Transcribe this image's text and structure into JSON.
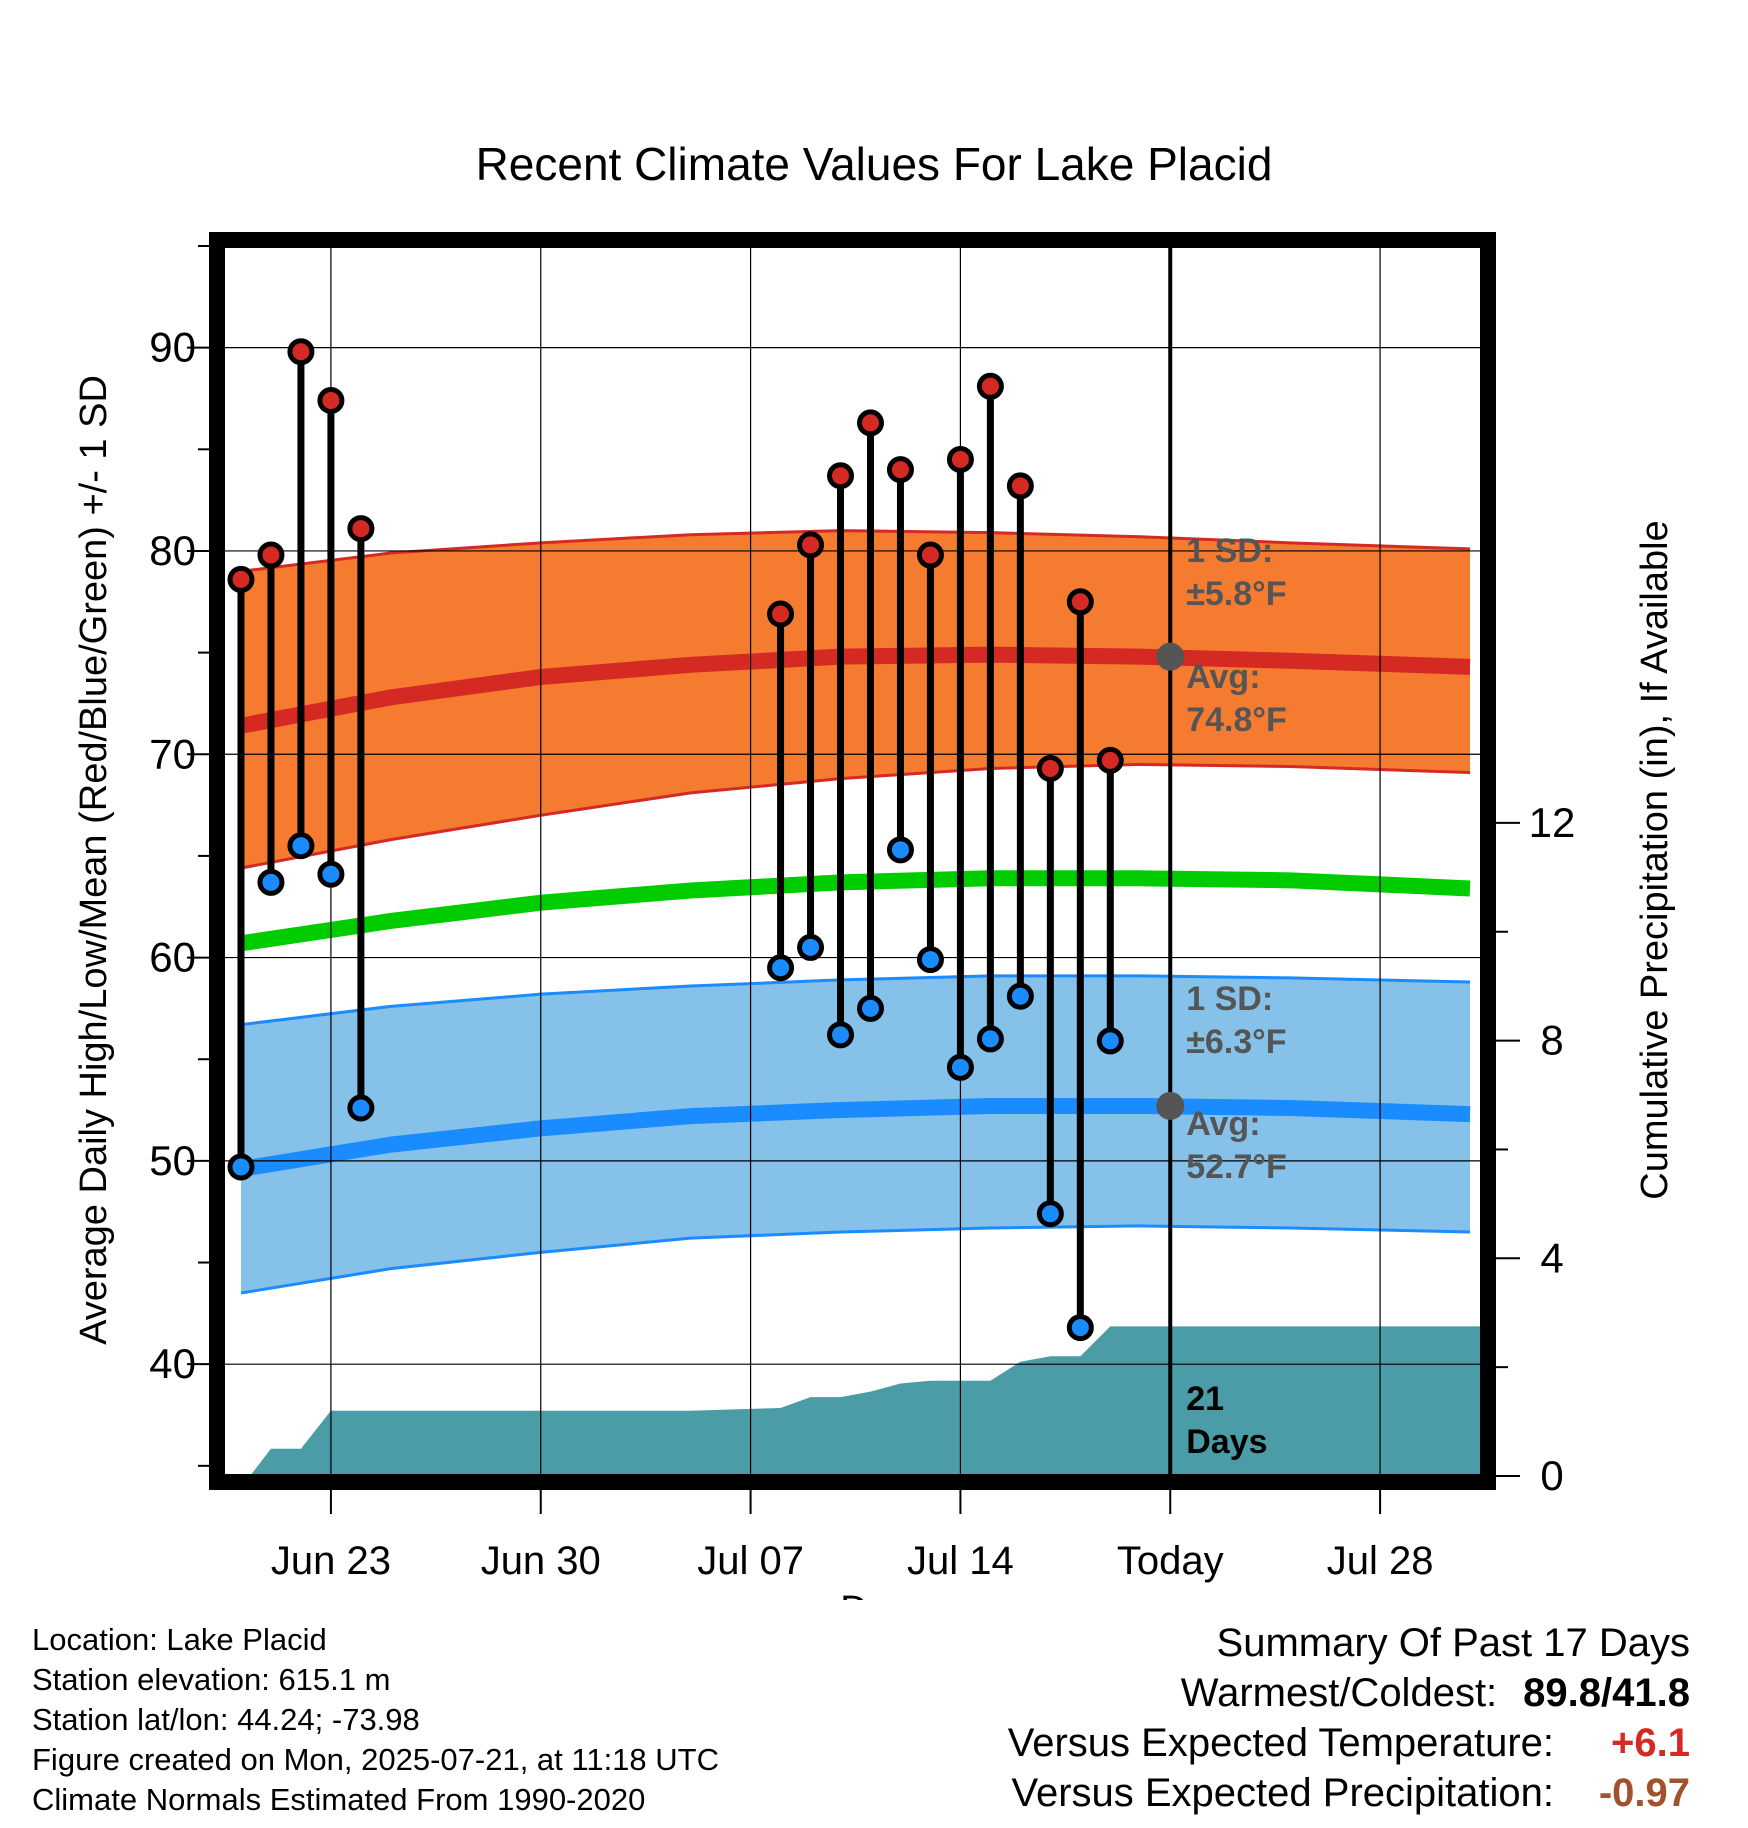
{
  "chart_data": {
    "type": "line",
    "title": "Recent Climate Values For Lake Placid",
    "xlabel": "Day",
    "ylabel": "Average Daily High/Low/Mean (Red/Blue/Green) +/- 1 SD",
    "ylabel_right": "Cumulative Precipitation (in), If Available",
    "x_ticks": [
      {
        "day": 3,
        "label": "Jun 23"
      },
      {
        "day": 10,
        "label": "Jun 30"
      },
      {
        "day": 17,
        "label": "Jul 07"
      },
      {
        "day": 24,
        "label": "Jul 14"
      },
      {
        "day": 31,
        "label": "Today"
      },
      {
        "day": 38,
        "label": "Jul 28"
      }
    ],
    "xlim": [
      -0.6,
      41.4
    ],
    "ylim": [
      34.5,
      95
    ],
    "y_ticks": [
      40,
      50,
      60,
      70,
      80,
      90
    ],
    "y2lim": [
      0,
      22.6
    ],
    "y2_ticks": [
      0,
      4,
      8,
      12
    ],
    "grid": true,
    "normals": {
      "day": [
        0,
        5,
        10,
        15,
        20,
        25,
        30,
        35,
        41
      ],
      "high_upper": [
        79.0,
        79.9,
        80.4,
        80.8,
        81.0,
        80.9,
        80.7,
        80.4,
        80.1
      ],
      "high_mean": [
        71.4,
        72.8,
        73.8,
        74.4,
        74.8,
        74.9,
        74.8,
        74.6,
        74.3
      ],
      "high_lower": [
        64.4,
        65.8,
        67.0,
        68.1,
        68.8,
        69.3,
        69.5,
        69.4,
        69.1
      ],
      "mean": [
        60.7,
        61.8,
        62.7,
        63.3,
        63.7,
        63.9,
        63.9,
        63.8,
        63.4
      ],
      "low_upper": [
        56.7,
        57.6,
        58.2,
        58.6,
        58.9,
        59.1,
        59.1,
        59.0,
        58.8
      ],
      "low_mean": [
        49.6,
        50.8,
        51.6,
        52.2,
        52.5,
        52.7,
        52.7,
        52.6,
        52.3
      ],
      "low_lower": [
        43.5,
        44.7,
        45.5,
        46.2,
        46.5,
        46.7,
        46.8,
        46.7,
        46.5
      ]
    },
    "observed": [
      {
        "day": 0,
        "high": 78.6,
        "low": 49.7
      },
      {
        "day": 1,
        "high": 79.8,
        "low": 63.7
      },
      {
        "day": 2,
        "high": 89.8,
        "low": 65.5
      },
      {
        "day": 3,
        "high": 87.4,
        "low": 64.1
      },
      {
        "day": 4,
        "high": 81.1,
        "low": 52.6
      },
      {
        "day": 18,
        "high": 76.9,
        "low": 59.5
      },
      {
        "day": 19,
        "high": 80.3,
        "low": 60.5
      },
      {
        "day": 20,
        "high": 83.7,
        "low": 56.2
      },
      {
        "day": 21,
        "high": 86.3,
        "low": 57.5
      },
      {
        "day": 22,
        "high": 84.0,
        "low": 65.3
      },
      {
        "day": 23,
        "high": 79.8,
        "low": 59.9
      },
      {
        "day": 24,
        "high": 84.5,
        "low": 54.6
      },
      {
        "day": 25,
        "high": 88.1,
        "low": 56.0
      },
      {
        "day": 26,
        "high": 83.2,
        "low": 58.1
      },
      {
        "day": 27,
        "high": 69.3,
        "low": 47.4
      },
      {
        "day": 28,
        "high": 77.5,
        "low": 41.8
      },
      {
        "day": 29,
        "high": 69.7,
        "low": 55.9
      }
    ],
    "precip_cumulative": {
      "day": [
        0.3,
        1,
        2,
        3,
        4,
        5,
        10,
        15,
        18,
        19,
        20,
        21,
        22,
        23,
        24,
        25,
        26,
        27,
        28,
        29,
        41.4
      ],
      "value": [
        0.0,
        0.5,
        0.5,
        1.2,
        1.2,
        1.2,
        1.2,
        1.2,
        1.25,
        1.45,
        1.45,
        1.55,
        1.7,
        1.75,
        1.75,
        1.75,
        2.1,
        2.2,
        2.2,
        2.75,
        2.75
      ]
    },
    "today_day": 31,
    "today_high_avg": 74.8,
    "today_low_avg": 52.7,
    "annotations": {
      "high_sd_l1": "1 SD:",
      "high_sd_l2": "±5.8°F",
      "high_avg_l1": "Avg:",
      "high_avg_l2": "74.8°F",
      "low_sd_l1": "1 SD:",
      "low_sd_l2": "±6.3°F",
      "low_avg_l1": "Avg:",
      "low_avg_l2": "52.7°F",
      "days_l1": "21",
      "days_l2": "Days"
    },
    "colors": {
      "high_band": "#f47b30",
      "high_line": "#d42a23",
      "low_band": "#85c1e8",
      "low_line": "#1a8cff",
      "mean_line": "#00cc00",
      "precip_fill": "#4a9ca6",
      "high_dot": "#d42a23",
      "low_dot": "#1a8cff",
      "annotation_text": "#555555"
    }
  },
  "info": {
    "location": "Location: Lake Placid",
    "elevation": "Station elevation: 615.1 m",
    "latlon": "Station lat/lon: 44.24; -73.98",
    "created": "Figure created on Mon, 2025-07-21, at 11:18 UTC",
    "normals": "Climate Normals Estimated From 1990-2020"
  },
  "summary": {
    "title": "Summary Of Past 17 Days",
    "warmest_label": "Warmest/Coldest:",
    "warmest_value": "89.8/41.8",
    "temp_label": "Versus Expected Temperature:",
    "temp_value": "+6.1",
    "temp_color": "#d42a23",
    "precip_label": "Versus Expected Precipitation:",
    "precip_value": "-0.97",
    "precip_color": "#a0522d"
  }
}
